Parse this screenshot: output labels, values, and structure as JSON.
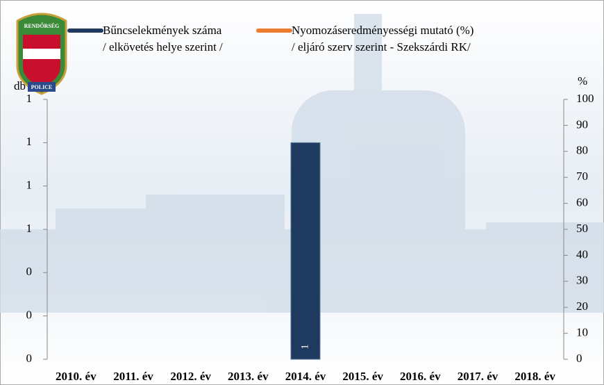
{
  "logo": {
    "top": "RENDŐRSÉG",
    "bottom": "POLICE"
  },
  "chart_data": {
    "type": "bar",
    "categories": [
      "2010. év",
      "2011. év",
      "2012. év",
      "2013. év",
      "2014. év",
      "2015. év",
      "2016. év",
      "2017. év",
      "2018. év"
    ],
    "series": [
      {
        "name": "Bűncselekmények száma\n/ elkövetés helye szerint /",
        "color": "#1f3a5f",
        "values": [
          null,
          null,
          null,
          null,
          1,
          null,
          null,
          null,
          null
        ]
      },
      {
        "name": "Nyomozáseredményességi mutató (%)\n/ eljáró szerv szerint - Szekszárdi RK/",
        "color": "#ed7d31",
        "axis": "y2",
        "type": "line",
        "values": [
          null,
          null,
          null,
          null,
          null,
          null,
          null,
          null,
          null
        ]
      }
    ],
    "ylabel": "db",
    "y2label": "%",
    "ylim": [
      0,
      1.2
    ],
    "yticks": [
      0,
      {
        "value": 0.2,
        "label": "0"
      },
      {
        "value": 0.4,
        "label": "0"
      },
      {
        "value": 0.6,
        "label": "1"
      },
      {
        "value": 0.8,
        "label": "1"
      },
      1,
      {
        "value": 1.2,
        "label": "1"
      }
    ],
    "y2lim": [
      0,
      100
    ],
    "y2ticks": [
      0,
      10,
      20,
      30,
      40,
      50,
      60,
      70,
      80,
      90,
      100
    ]
  }
}
